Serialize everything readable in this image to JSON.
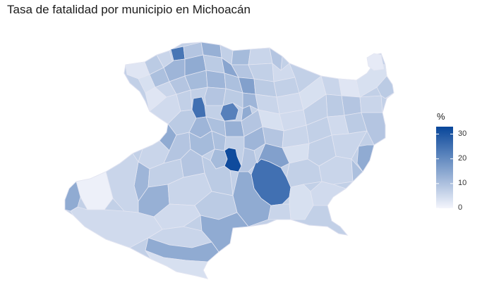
{
  "title": "Tasa de fatalidad por municipio en Michoacán",
  "legend": {
    "title": "%",
    "ticks": [
      {
        "label": "30",
        "value": 30
      },
      {
        "label": "20",
        "value": 20
      },
      {
        "label": "10",
        "value": 10
      },
      {
        "label": "0",
        "value": 0
      }
    ],
    "range": [
      0,
      33
    ],
    "colors": {
      "low": "#f4f5fc",
      "high": "#08469a"
    }
  },
  "map": {
    "region": "Michoacán",
    "highlights": [
      {
        "name": "darkest municipality",
        "value": 32
      },
      {
        "name": "large dark municipality",
        "value": 25
      },
      {
        "name": "northern dark municipality",
        "value": 22
      }
    ]
  }
}
